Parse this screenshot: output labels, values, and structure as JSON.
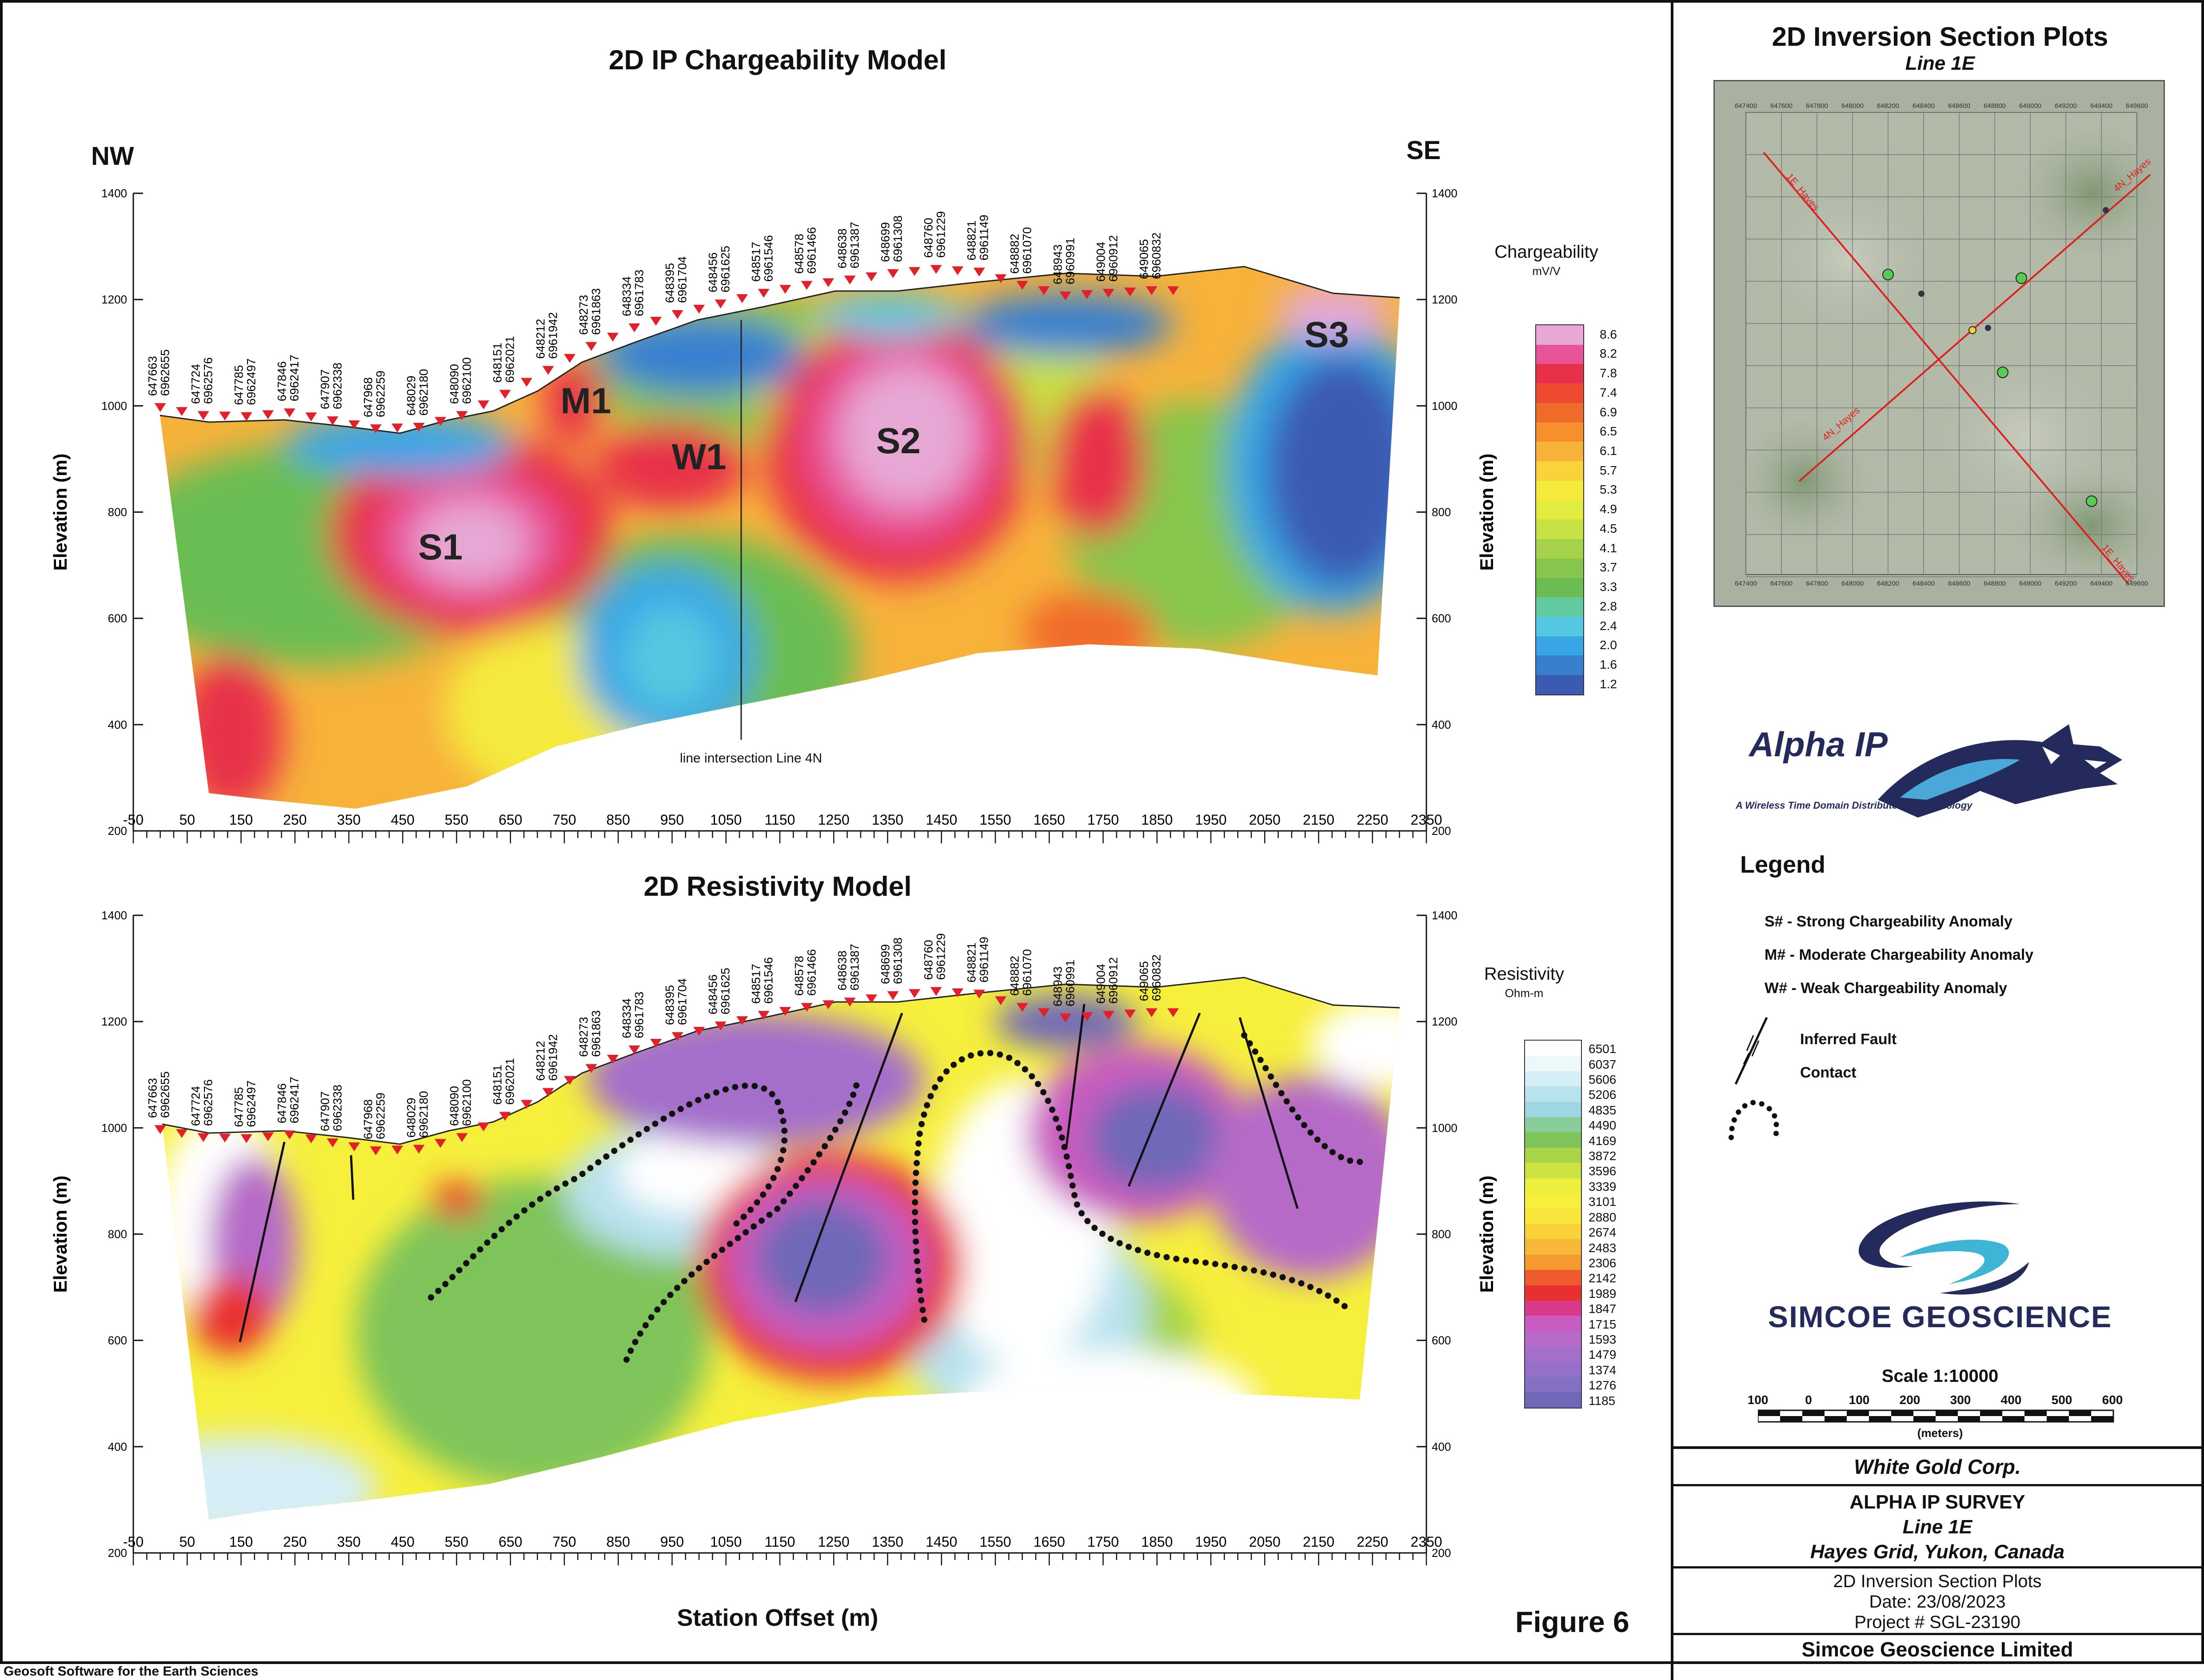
{
  "chart_data": [
    {
      "type": "heatmap",
      "title": "2D IP Chargeability Model",
      "left_label": "NW",
      "right_label": "SE",
      "ylabel": "Elevation (m)",
      "ylim": [
        200,
        1400
      ],
      "y_ticks": [
        200,
        400,
        600,
        800,
        1000,
        1200,
        1400
      ],
      "xlim": [
        -50,
        2350
      ],
      "x_ticks": [
        -50,
        50,
        150,
        250,
        350,
        450,
        550,
        650,
        750,
        850,
        950,
        1050,
        1150,
        1250,
        1350,
        1450,
        1550,
        1650,
        1750,
        1850,
        1950,
        2050,
        2150,
        2250,
        2350
      ],
      "colorbar": {
        "title": "Chargeability",
        "unit": "mV/V",
        "labels": [
          "8.6",
          "8.2",
          "7.8",
          "7.4",
          "6.9",
          "6.5",
          "6.1",
          "5.7",
          "5.3",
          "4.9",
          "4.5",
          "4.1",
          "3.7",
          "3.3",
          "2.8",
          "2.4",
          "2.0",
          "1.6",
          "1.2"
        ],
        "colors": [
          "#e7a8d6",
          "#e8539a",
          "#e8304a",
          "#ee4a30",
          "#f06a2a",
          "#f5902c",
          "#f7b23a",
          "#f9d23c",
          "#f5ea3c",
          "#e2ec3e",
          "#c6e243",
          "#a5d24a",
          "#86c64d",
          "#6bbd52",
          "#62c9a0",
          "#54c8e0",
          "#38a6e6",
          "#3780d0",
          "#3b5ab2"
        ]
      },
      "anomalies": [
        {
          "label": "S1",
          "x": 520,
          "y": 735
        },
        {
          "label": "M1",
          "x": 790,
          "y": 1010
        },
        {
          "label": "W1",
          "x": 1000,
          "y": 905
        },
        {
          "label": "S2",
          "x": 1370,
          "y": 935
        },
        {
          "label": "S3",
          "x": 2165,
          "y": 1135
        }
      ],
      "annotation": "line intersection Line 4N",
      "stations": [
        {
          "x": 0,
          "elev": 985,
          "e": "647663",
          "n": "6962655"
        },
        {
          "x": 80,
          "elev": 970,
          "e": "647724",
          "n": "6962576"
        },
        {
          "x": 160,
          "elev": 968,
          "e": "647785",
          "n": "6962497"
        },
        {
          "x": 240,
          "elev": 975,
          "e": "647846",
          "n": "6962417"
        },
        {
          "x": 320,
          "elev": 960,
          "e": "647907",
          "n": "6962338"
        },
        {
          "x": 400,
          "elev": 945,
          "e": "647968",
          "n": "6962259"
        },
        {
          "x": 480,
          "elev": 948,
          "e": "648029",
          "n": "6962180"
        },
        {
          "x": 560,
          "elev": 970,
          "e": "648090",
          "n": "6962100"
        },
        {
          "x": 640,
          "elev": 1010,
          "e": "648151",
          "n": "6962021"
        },
        {
          "x": 720,
          "elev": 1055,
          "e": "648212",
          "n": "6961942"
        },
        {
          "x": 800,
          "elev": 1100,
          "e": "648273",
          "n": "6961863"
        },
        {
          "x": 880,
          "elev": 1135,
          "e": "648334",
          "n": "6961783"
        },
        {
          "x": 960,
          "elev": 1160,
          "e": "648395",
          "n": "6961704"
        },
        {
          "x": 1040,
          "elev": 1180,
          "e": "648456",
          "n": "6961625"
        },
        {
          "x": 1120,
          "elev": 1200,
          "e": "648517",
          "n": "6961546"
        },
        {
          "x": 1200,
          "elev": 1215,
          "e": "648578",
          "n": "6961466"
        },
        {
          "x": 1280,
          "elev": 1225,
          "e": "648638",
          "n": "6961387"
        },
        {
          "x": 1360,
          "elev": 1237,
          "e": "648699",
          "n": "6961308"
        },
        {
          "x": 1440,
          "elev": 1245,
          "e": "648760",
          "n": "6961229"
        },
        {
          "x": 1520,
          "elev": 1240,
          "e": "648821",
          "n": "6961149"
        },
        {
          "x": 1600,
          "elev": 1215,
          "e": "648882",
          "n": "6961070"
        },
        {
          "x": 1680,
          "elev": 1195,
          "e": "648943",
          "n": "6960991"
        },
        {
          "x": 1760,
          "elev": 1200,
          "e": "649004",
          "n": "6960912"
        },
        {
          "x": 1840,
          "elev": 1205,
          "e": "649065",
          "n": "6960832"
        }
      ]
    },
    {
      "type": "heatmap",
      "title": "2D Resistivity Model",
      "ylabel": "Elevation (m)",
      "xlabel": "Station Offset (m)",
      "ylim": [
        200,
        1400
      ],
      "y_ticks": [
        200,
        400,
        600,
        800,
        1000,
        1200,
        1400
      ],
      "xlim": [
        -50,
        2350
      ],
      "x_ticks": [
        -50,
        50,
        150,
        250,
        350,
        450,
        550,
        650,
        750,
        850,
        950,
        1050,
        1150,
        1250,
        1350,
        1450,
        1550,
        1650,
        1750,
        1850,
        1950,
        2050,
        2150,
        2250,
        2350
      ],
      "colorbar": {
        "title": "Resistivity",
        "unit": "Ohm-m",
        "labels": [
          "6501",
          "6037",
          "5606",
          "5206",
          "4835",
          "4490",
          "4169",
          "3872",
          "3596",
          "3339",
          "3101",
          "2880",
          "2674",
          "2483",
          "2306",
          "2142",
          "1989",
          "1847",
          "1715",
          "1593",
          "1479",
          "1374",
          "1276",
          "1185"
        ],
        "colors": [
          "#ffffff",
          "#eef8fb",
          "#d6eef6",
          "#b8e2ee",
          "#9fd6e3",
          "#88cc9a",
          "#7fc45a",
          "#a8d448",
          "#cde342",
          "#ecef3e",
          "#f6ef3c",
          "#f9e63c",
          "#f9d23a",
          "#f7b83a",
          "#f59a30",
          "#ef5a2e",
          "#e8302e",
          "#d93a8a",
          "#c85cc0",
          "#b66bc8",
          "#a46ecb",
          "#9470c8",
          "#8571c4",
          "#6f67b8"
        ]
      }
    }
  ],
  "figure_label": "Figure 6",
  "footer": "Geosoft Software for the Earth Sciences",
  "right_panel": {
    "title": "2D Inversion Section Plots",
    "subtitle": "Line 1E",
    "map": {
      "top_ticks": [
        "647400",
        "647600",
        "647800",
        "648000",
        "648200",
        "648400",
        "648600",
        "648800",
        "649000",
        "649200",
        "649400",
        "649600"
      ],
      "line_labels": [
        "1E_Hayes",
        "4N_Hayes",
        "4N_Hayes",
        "1E_Hayes"
      ]
    },
    "logo_alpha": {
      "name": "Alpha IP",
      "tagline": "A Wireless Time Domain Distributed IP Technology"
    },
    "legend": {
      "title": "Legend",
      "items": [
        "S# - Strong Chargeability Anomaly",
        "M# - Moderate Chargeability Anomaly",
        "W# - Weak Chargeability Anomaly",
        "Inferred Fault",
        "Contact"
      ]
    },
    "logo_simcoe": "SIMCOE GEOSCIENCE",
    "scale": {
      "label": "Scale 1:10000",
      "ticks": [
        "100",
        "0",
        "100",
        "200",
        "300",
        "400",
        "500",
        "600"
      ],
      "unit": "(meters)"
    },
    "title_block": {
      "client": "White Gold Corp.",
      "survey": "ALPHA IP SURVEY",
      "line": "Line 1E",
      "location": "Hayes Grid, Yukon, Canada",
      "plot_type": "2D Inversion Section Plots",
      "date": "Date: 23/08/2023",
      "project": "Project # SGL-23190",
      "company": "Simcoe Geoscience Limited"
    }
  }
}
